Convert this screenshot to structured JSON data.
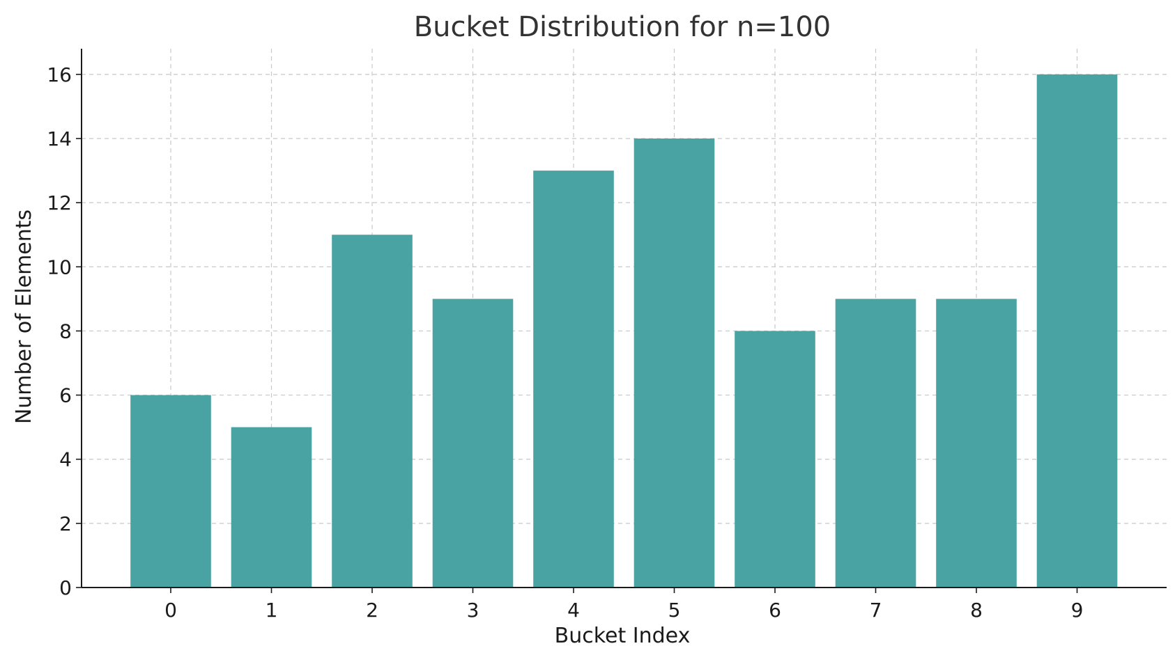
{
  "chart_data": {
    "type": "bar",
    "title": "Bucket Distribution for n=100",
    "xlabel": "Bucket Index",
    "ylabel": "Number of Elements",
    "categories": [
      "0",
      "1",
      "2",
      "3",
      "4",
      "5",
      "6",
      "7",
      "8",
      "9"
    ],
    "values": [
      6,
      5,
      11,
      9,
      13,
      14,
      8,
      9,
      9,
      16
    ],
    "ylim": [
      0,
      16.8
    ],
    "yticks": [
      0,
      2,
      4,
      6,
      8,
      10,
      12,
      14,
      16
    ],
    "grid": true,
    "bar_color": "#4aa3a3"
  }
}
